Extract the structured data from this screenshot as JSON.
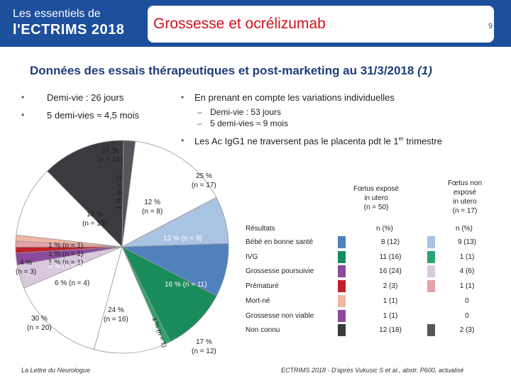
{
  "header": {
    "logo_line1": "Les essentiels de",
    "logo_line2": "l'ECTRIMS 2018",
    "title": "Grossesse et ocrélizumab",
    "page_number": "9"
  },
  "subtitle": {
    "main": "Données des essais thérapeutiques et post-marketing au 31/3/2018",
    "ref": "(1)"
  },
  "left_bullets": [
    "Demi-vie : 26 jours",
    "5 demi-vies ≈ 4,5 mois"
  ],
  "right_bullets": {
    "b1": "En prenant en compte les variations individuelles",
    "sub1": "Demi-vie : 53 jours",
    "sub2": "5 demi-vies ≈ 9 mois",
    "b2_pre": "Les Ac IgG1 ne traversent pas le placenta pdt le 1",
    "b2_sup": "er",
    "b2_post": " trimestre"
  },
  "chart_labels": {
    "l21": "21 %",
    "l21n": "(n = 14)",
    "l3": "3 % (n = 2)",
    "l25": "25 %",
    "l25n": "(n = 17)",
    "l12": "12 %",
    "l12n": "(n = 8)",
    "l18": "18 %",
    "l18n": "(n = 12)",
    "l13": "13 % (n = 9)",
    "l1a": "1 % (n = 1)",
    "l1b": "1 % (n = 1)",
    "l1c": "1 % (n = 1)",
    "l3b": "3 % (n = 2)",
    "l4": "4 %",
    "l4n": "(n = 3)",
    "l6": "6 % (n = 4)",
    "l16": "16 % (n = 11)",
    "l24": "24 %",
    "l24n": "(n = 16)",
    "l1d": "1 % (n = 1)",
    "l30": "30 %",
    "l30n": "(n = 20)",
    "l17": "17 %",
    "l17n": "(n = 12)"
  },
  "chart_data": {
    "type": "pie",
    "slices": [
      {
        "label": "21 % (n = 14)",
        "value": 14,
        "color": "#3b3b3f"
      },
      {
        "label": "3 % (n = 2)",
        "value": 2,
        "color": "#55565b"
      },
      {
        "label": "25 % (n = 17)",
        "value": 17,
        "color": "#ffffff"
      },
      {
        "label": "12 % (n = 8)",
        "value": 8,
        "color": "#a9c3e3"
      },
      {
        "label": "13 % (n = 9)",
        "value": 9,
        "color": "#4f81bd"
      },
      {
        "label": "16 % (n = 11)",
        "value": 11,
        "color": "#1a8c5b"
      },
      {
        "label": "1 % (n = 1)",
        "value": 1,
        "color": "#2ea36e"
      },
      {
        "label": "17 % (n = 12)",
        "value": 12,
        "color": "#ffffff"
      },
      {
        "label": "24 % (n = 16)",
        "value": 16,
        "color": "#ffffff"
      },
      {
        "label": "6 % (n = 4)",
        "value": 4,
        "color": "#d9c9dd"
      },
      {
        "label": "3 % (n = 2)",
        "value": 2,
        "color": "#8b4a9a"
      },
      {
        "label": "1 % (n = 1)",
        "value": 1,
        "color": "#c0202a"
      },
      {
        "label": "1 % (n = 1)",
        "value": 1,
        "color": "#e6a2aa"
      },
      {
        "label": "1 % (n = 1)",
        "value": 1,
        "color": "#f2b6a0"
      },
      {
        "label": "18 % (n = 12)",
        "value": 12,
        "color": "#ffffff"
      }
    ]
  },
  "table": {
    "col1": {
      "l1": "Fœtus exposé",
      "l2": "in utero",
      "l3": "(n = 50)"
    },
    "col2": {
      "l1": "Fœtus non",
      "l2": "exposé",
      "l3": "in utero",
      "l4": "(n = 17)"
    },
    "head_label": "Résultats",
    "head_v1": "n (%)",
    "head_v2": "n (%)",
    "rows": [
      {
        "label": "Bébé en bonne santé",
        "v1": "8 (12)",
        "v2": "9 (13)",
        "c1": "#4f81bd",
        "c2": "#a9c3e3"
      },
      {
        "label": "IVG",
        "v1": "11 (16)",
        "v2": "1 (1)",
        "c1": "#1a8c5b",
        "c2": "#2ea36e"
      },
      {
        "label": "Grossesse poursuivie",
        "v1": "16 (24)",
        "v2": "4 (6)",
        "c1": "#8b4a9a",
        "c2": "#d9c9dd"
      },
      {
        "label": "Prématuré",
        "v1": "2 (3)",
        "v2": "1 (1)",
        "c1": "#c0202a",
        "c2": "#e6a2aa"
      },
      {
        "label": "Mort-né",
        "v1": "1 (1)",
        "v2": "0",
        "c1": "#f2b6a0",
        "c2": ""
      },
      {
        "label": "Grossesse non viable",
        "v1": "1 (1)",
        "v2": "0",
        "c1": "#8b4a9a",
        "c2": ""
      },
      {
        "label": "Non connu",
        "v1": "12 (18)",
        "v2": "2 (3)",
        "c1": "#3b3b3f",
        "c2": "#55565b"
      }
    ]
  },
  "footer": {
    "left": "La Lettre du Neurologue",
    "right": "ECTRIMS 2018 - D'après Vukusic S et al., abstr. P600, actualisé"
  }
}
